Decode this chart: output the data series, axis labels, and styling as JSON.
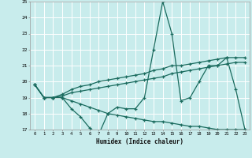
{
  "xlabel": "Humidex (Indice chaleur)",
  "xlim": [
    -0.5,
    23.5
  ],
  "ylim": [
    17,
    25
  ],
  "yticks": [
    17,
    18,
    19,
    20,
    21,
    22,
    23,
    24,
    25
  ],
  "xticks": [
    0,
    1,
    2,
    3,
    4,
    5,
    6,
    7,
    8,
    9,
    10,
    11,
    12,
    13,
    14,
    15,
    16,
    17,
    18,
    19,
    20,
    21,
    22,
    23
  ],
  "bg_color": "#c8ecec",
  "line_color": "#1a6b5e",
  "grid_color": "#ffffff",
  "series": {
    "spiky": [
      19.8,
      19.0,
      19.0,
      19.0,
      18.3,
      17.8,
      17.1,
      16.7,
      18.0,
      18.4,
      18.3,
      18.3,
      19.0,
      22.0,
      25.0,
      23.0,
      18.8,
      19.0,
      20.0,
      21.0,
      21.0,
      21.5,
      19.5,
      17.0
    ],
    "upper_linear": [
      19.8,
      19.0,
      19.0,
      19.2,
      19.5,
      19.7,
      19.8,
      20.0,
      20.1,
      20.2,
      20.3,
      20.4,
      20.5,
      20.7,
      20.8,
      21.0,
      21.0,
      21.1,
      21.2,
      21.3,
      21.4,
      21.5,
      21.5,
      21.5
    ],
    "lower_linear": [
      19.8,
      19.0,
      19.0,
      19.1,
      19.3,
      19.4,
      19.5,
      19.6,
      19.7,
      19.8,
      19.9,
      20.0,
      20.1,
      20.2,
      20.3,
      20.5,
      20.6,
      20.7,
      20.8,
      20.9,
      21.0,
      21.1,
      21.2,
      21.2
    ],
    "declining": [
      19.8,
      19.0,
      19.0,
      19.0,
      18.8,
      18.6,
      18.4,
      18.2,
      18.0,
      17.9,
      17.8,
      17.7,
      17.6,
      17.5,
      17.5,
      17.4,
      17.3,
      17.2,
      17.2,
      17.1,
      17.0,
      17.0,
      17.0,
      17.0
    ]
  }
}
